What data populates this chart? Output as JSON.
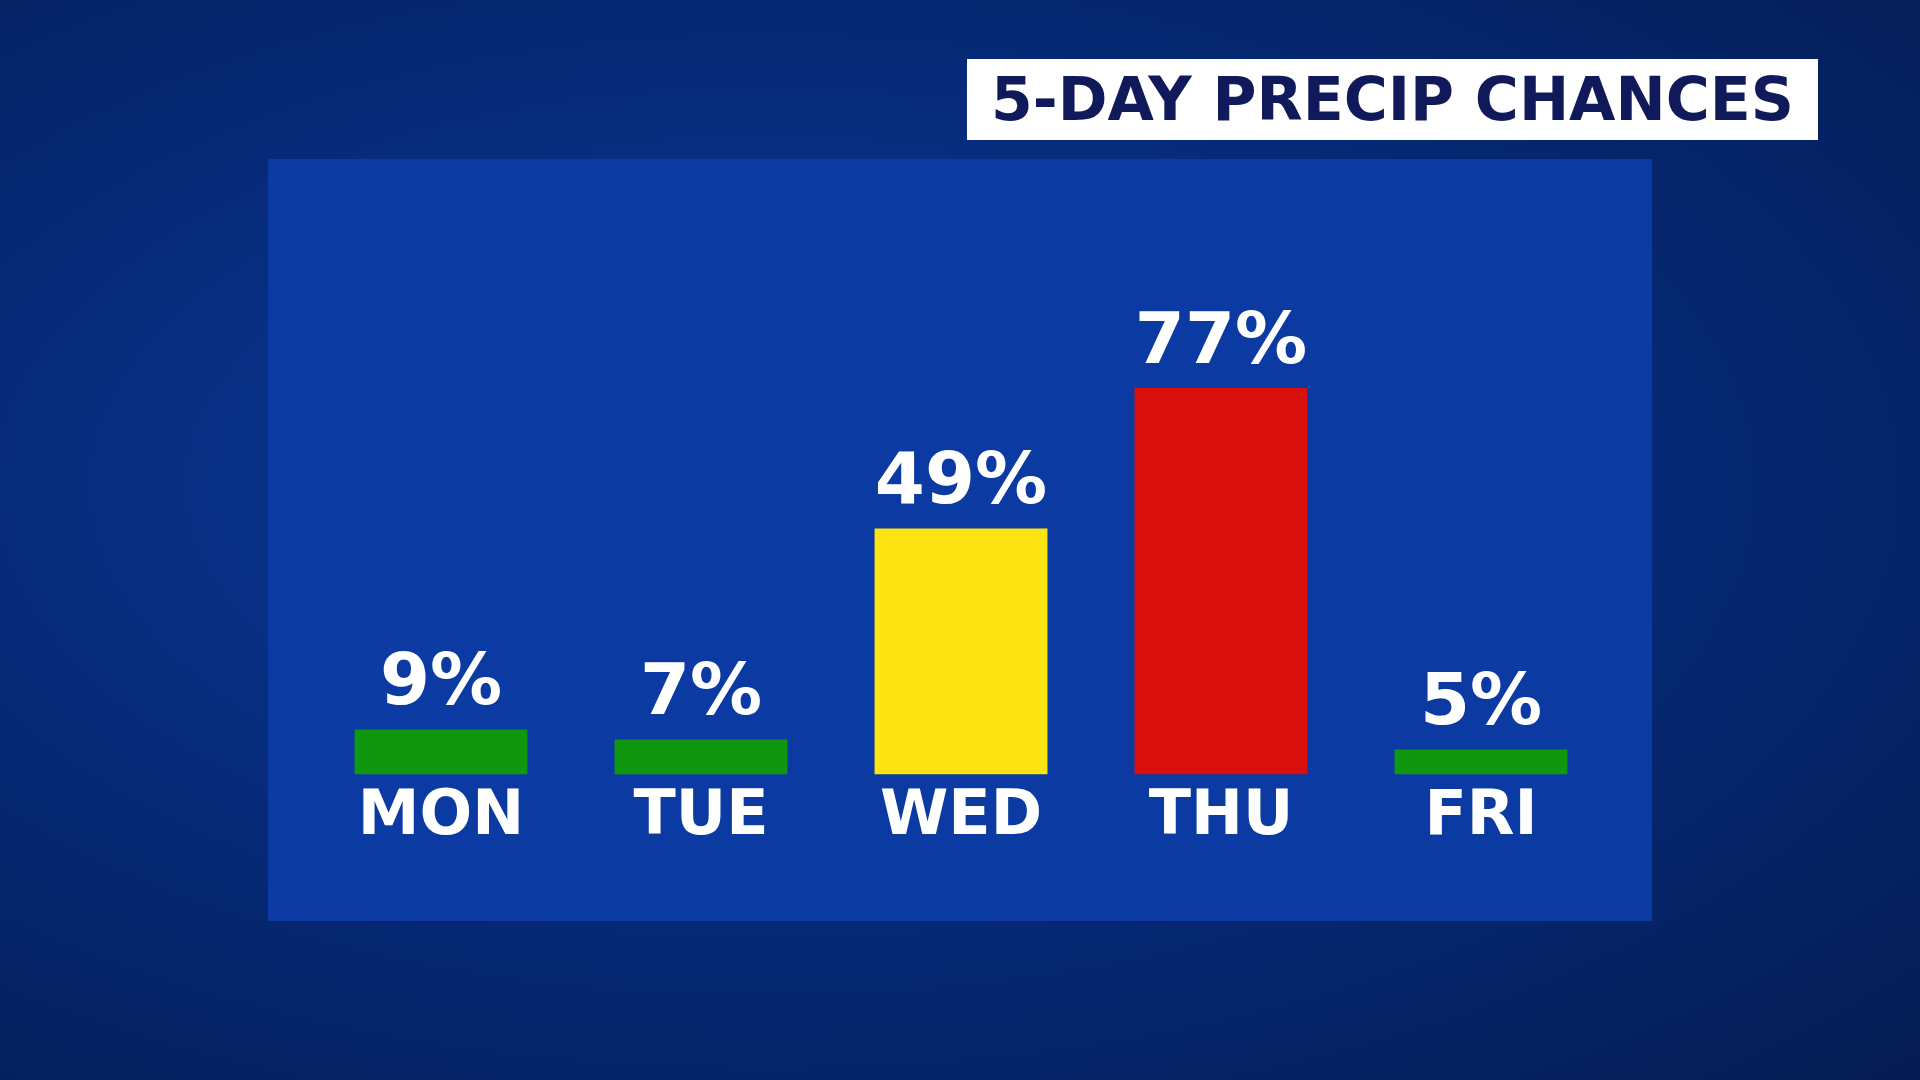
{
  "chart_data": {
    "type": "bar",
    "title": "5-DAY PRECIP CHANCES",
    "categories": [
      "MON",
      "TUE",
      "WED",
      "THU",
      "FRI"
    ],
    "values": [
      9,
      7,
      49,
      77,
      5
    ],
    "colors": [
      "#10960f",
      "#10960f",
      "#fde311",
      "#d90f0e",
      "#10960f"
    ],
    "value_labels": [
      "9%",
      "7%",
      "49%",
      "77%",
      "5%"
    ],
    "grid": false,
    "legend": false
  }
}
